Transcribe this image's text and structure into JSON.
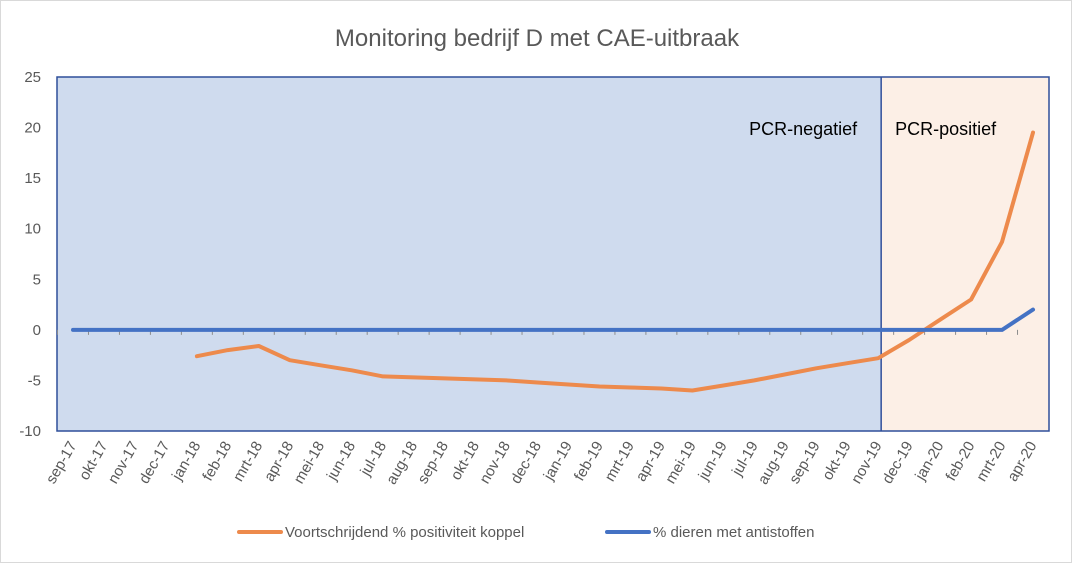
{
  "chart_data": {
    "type": "line",
    "title": "Monitoring bedrijf D met CAE-uitbraak",
    "xlabel": "",
    "ylabel": "",
    "ylim": [
      -10,
      25
    ],
    "yticks": [
      -10,
      -5,
      0,
      5,
      10,
      15,
      20,
      25
    ],
    "grid": false,
    "legend_position": "bottom",
    "categories": [
      "sep-17",
      "okt-17",
      "nov-17",
      "dec-17",
      "jan-18",
      "feb-18",
      "mrt-18",
      "apr-18",
      "mei-18",
      "jun-18",
      "jul-18",
      "aug-18",
      "sep-18",
      "okt-18",
      "nov-18",
      "dec-18",
      "jan-19",
      "feb-19",
      "mrt-19",
      "apr-19",
      "mei-19",
      "jun-19",
      "jul-19",
      "aug-19",
      "sep-19",
      "okt-19",
      "nov-19",
      "dec-19",
      "jan-20",
      "feb-20",
      "mrt-20",
      "apr-20"
    ],
    "regions": [
      {
        "label": "PCR-negatief",
        "from": "sep-17",
        "to": "nov-19",
        "color": "#cfdbee"
      },
      {
        "label": "PCR-positief",
        "from": "nov-19",
        "to": "apr-20",
        "color": "#fcefe6"
      }
    ],
    "series": [
      {
        "name": "Voortschrijdend % positiviteit koppel",
        "color": "#ed8a4c",
        "values": [
          null,
          null,
          null,
          null,
          -2.6,
          -2.0,
          -1.6,
          -3.0,
          -3.5,
          -4.0,
          -4.6,
          -4.7,
          -4.8,
          -4.9,
          -5.0,
          -5.2,
          -5.4,
          -5.6,
          -5.7,
          -5.8,
          -6.0,
          -5.5,
          -5.0,
          -4.4,
          -3.8,
          -3.3,
          -2.8,
          -1.0,
          1.0,
          3.0,
          8.7,
          19.5
        ]
      },
      {
        "name": "% dieren met antistoffen",
        "color": "#4472c4",
        "values": [
          0,
          0,
          0,
          0,
          0,
          0,
          0,
          0,
          0,
          0,
          0,
          0,
          0,
          0,
          0,
          0,
          0,
          0,
          0,
          0,
          0,
          0,
          0,
          0,
          0,
          0,
          0,
          0,
          0,
          0,
          0,
          2.0
        ]
      }
    ]
  }
}
